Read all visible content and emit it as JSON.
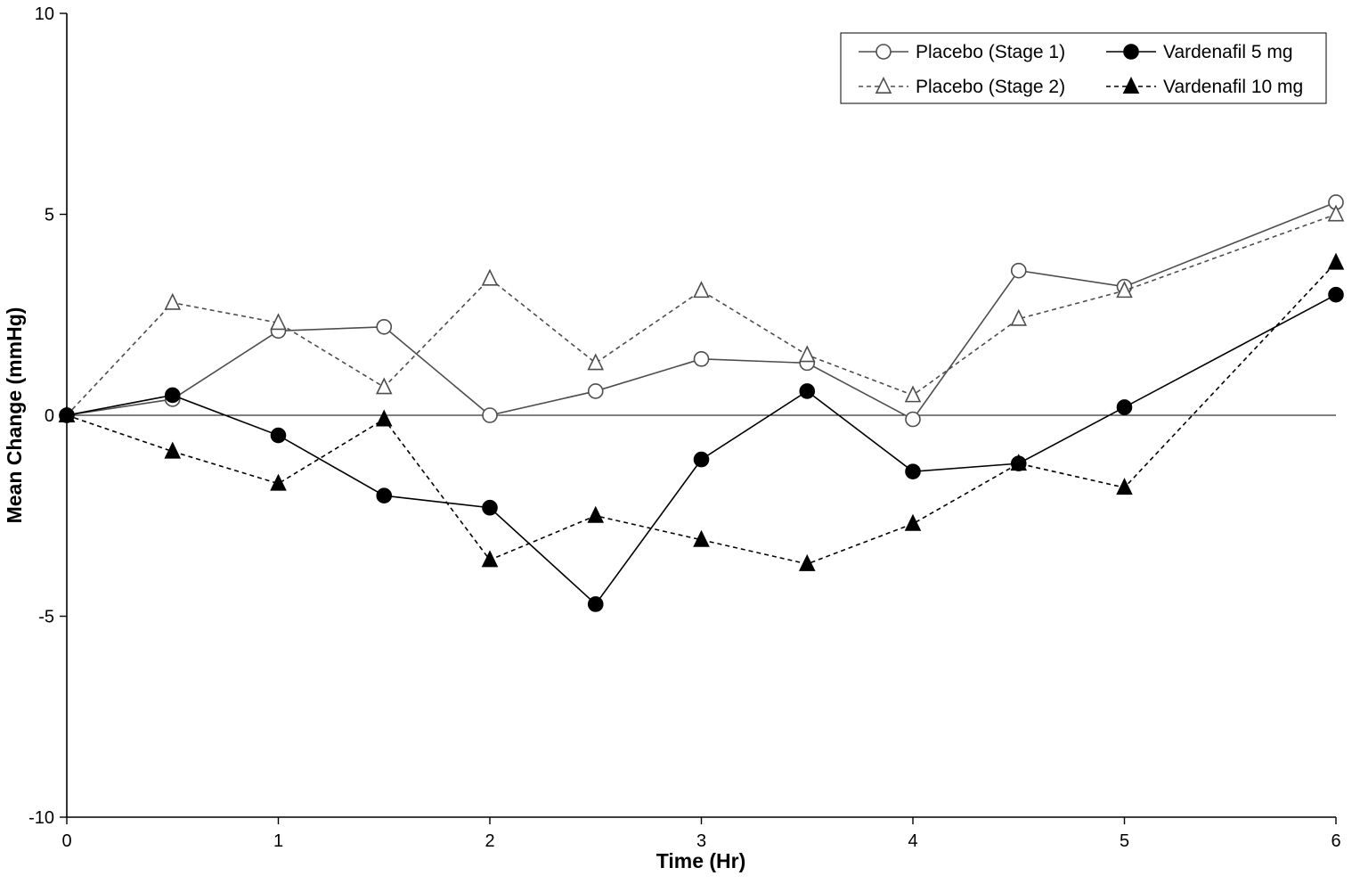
{
  "chart_data": {
    "type": "line",
    "title": "",
    "xlabel": "Time (Hr)",
    "ylabel": "Mean Change (mmHg)",
    "xlim": [
      0,
      6
    ],
    "ylim": [
      -10,
      10
    ],
    "xticks": [
      0,
      1,
      2,
      3,
      4,
      5,
      6
    ],
    "yticks": [
      -10,
      -5,
      0,
      5,
      10
    ],
    "zero_line": true,
    "grid": false,
    "legend_position": "top-right",
    "x": [
      0,
      0.5,
      1,
      1.5,
      2,
      2.5,
      3,
      3.5,
      4,
      4.5,
      5,
      6
    ],
    "series": [
      {
        "name": "Placebo (Stage 1)",
        "marker": "open-circle",
        "line": "solid",
        "color": "#4d4d4d",
        "values": [
          0,
          0.4,
          2.1,
          2.2,
          0.0,
          0.6,
          1.4,
          1.3,
          -0.1,
          3.6,
          3.2,
          5.3
        ]
      },
      {
        "name": "Placebo (Stage 2)",
        "marker": "open-triangle",
        "line": "dashed",
        "color": "#4d4d4d",
        "values": [
          0,
          2.8,
          2.3,
          0.7,
          3.4,
          1.3,
          3.1,
          1.5,
          0.5,
          2.4,
          3.1,
          5.0
        ]
      },
      {
        "name": "Vardenafil 5 mg",
        "marker": "filled-circle",
        "line": "solid",
        "color": "#000000",
        "values": [
          0,
          0.5,
          -0.5,
          -2.0,
          -2.3,
          -4.7,
          -1.1,
          0.6,
          -1.4,
          -1.2,
          0.2,
          3.0
        ]
      },
      {
        "name": "Vardenafil 10 mg",
        "marker": "filled-triangle",
        "line": "dashed",
        "color": "#000000",
        "values": [
          0,
          -0.9,
          -1.7,
          -0.1,
          -3.6,
          -2.5,
          -3.1,
          -3.7,
          -2.7,
          -1.2,
          -1.8,
          3.8
        ]
      }
    ],
    "legend_grid_rows": [
      [
        "Placebo (Stage 1)",
        "Vardenafil 5 mg"
      ],
      [
        "Placebo (Stage 2)",
        "Vardenafil 10 mg"
      ]
    ]
  }
}
